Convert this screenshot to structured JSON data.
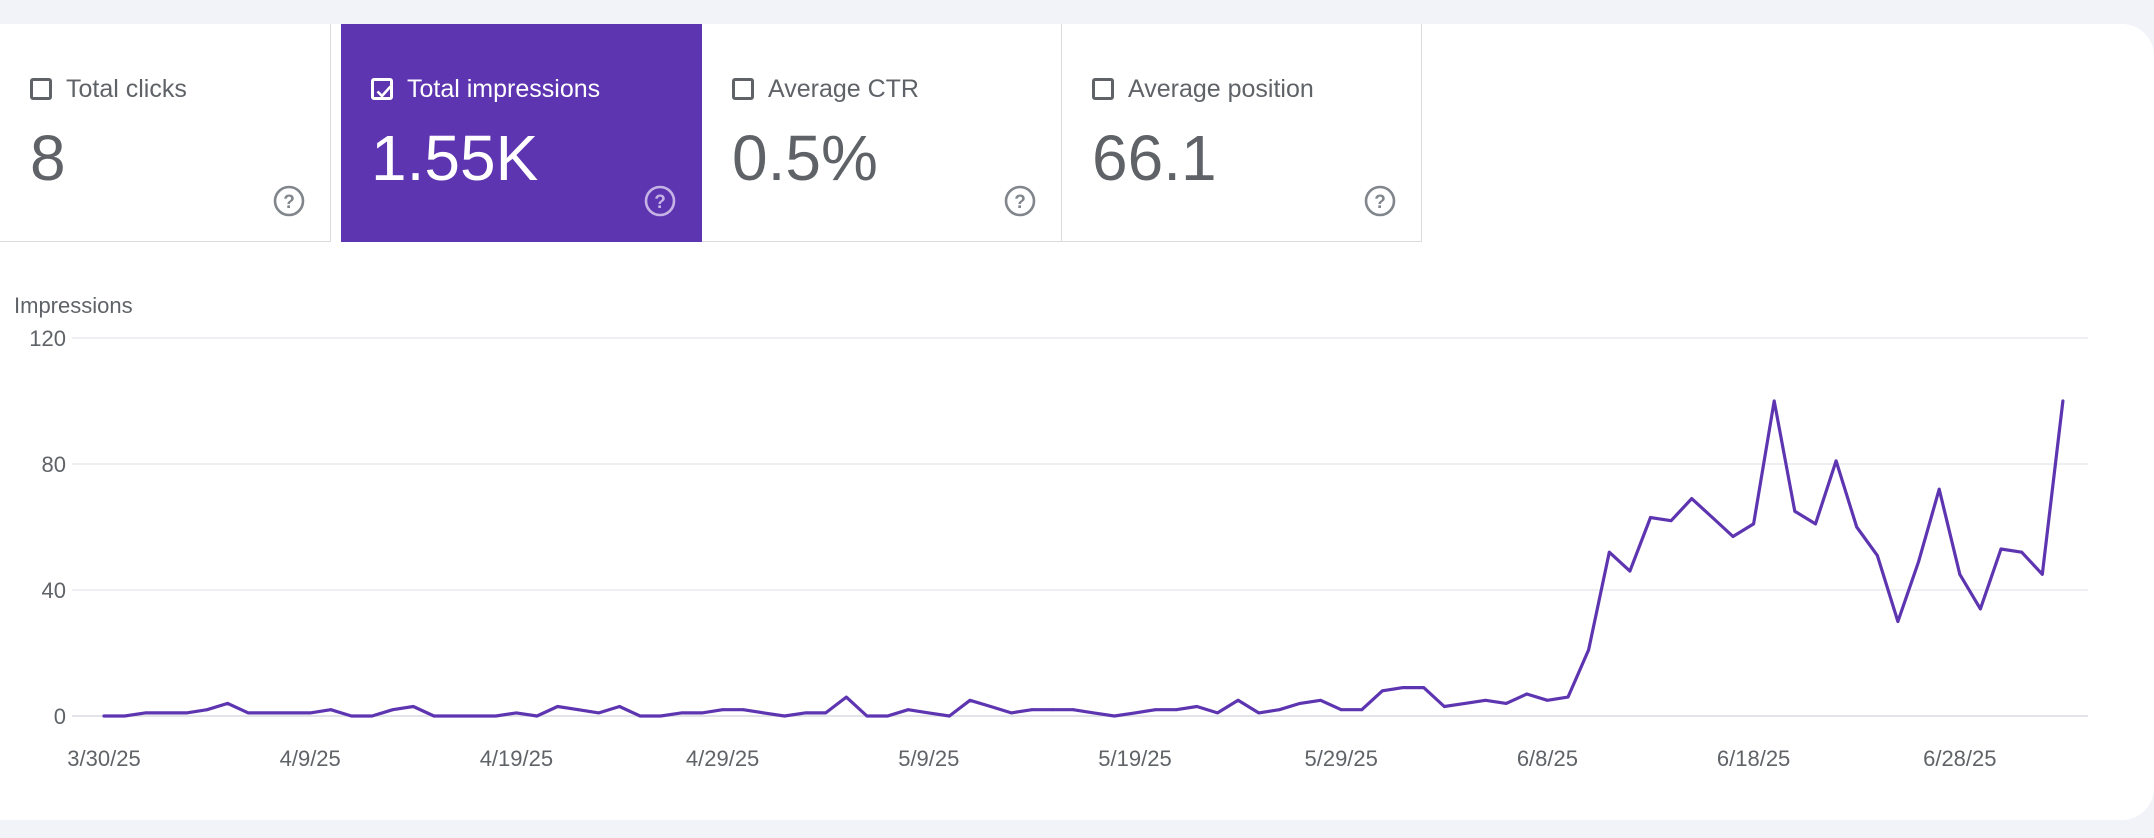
{
  "metrics": [
    {
      "label": "Total clicks",
      "value": "8",
      "selected": false
    },
    {
      "label": "Total impressions",
      "value": "1.55K",
      "selected": true
    },
    {
      "label": "Average CTR",
      "value": "0.5%",
      "selected": false
    },
    {
      "label": "Average position",
      "value": "66.1",
      "selected": false
    }
  ],
  "colors": {
    "accent": "#5e35b1",
    "line": "#5e35b1",
    "grid": "#e8eaed",
    "text": "#5f6368"
  },
  "chart_data": {
    "type": "line",
    "ylabel": "Impressions",
    "ylim": [
      0,
      120
    ],
    "y_ticks": [
      0,
      40,
      80,
      120
    ],
    "x_tick_labels": [
      "3/30/25",
      "4/9/25",
      "4/19/25",
      "4/29/25",
      "5/9/25",
      "5/19/25",
      "5/29/25",
      "6/8/25",
      "6/18/25",
      "6/28/25"
    ],
    "x_range": [
      "3/30/25",
      "7/3/25"
    ],
    "grid": true,
    "series": [
      {
        "values": [
          0,
          0,
          1,
          1,
          1,
          2,
          4,
          1,
          1,
          1,
          1,
          2,
          0,
          0,
          2,
          3,
          0,
          0,
          0,
          0,
          1,
          0,
          3,
          2,
          1,
          3,
          0,
          0,
          1,
          1,
          2,
          2,
          1,
          0,
          1,
          1,
          6,
          0,
          0,
          2,
          1,
          0,
          5,
          3,
          1,
          2,
          2,
          2,
          1,
          0,
          1,
          2,
          2,
          3,
          1,
          5,
          1,
          2,
          4,
          5,
          2,
          2,
          8,
          9,
          9,
          3,
          4,
          5,
          4,
          7,
          5,
          6,
          21,
          52,
          46,
          63,
          62,
          69,
          63,
          57,
          61,
          100,
          65,
          61,
          81,
          60,
          51,
          30,
          49,
          72,
          45,
          34,
          53,
          52,
          45,
          100
        ]
      }
    ]
  }
}
